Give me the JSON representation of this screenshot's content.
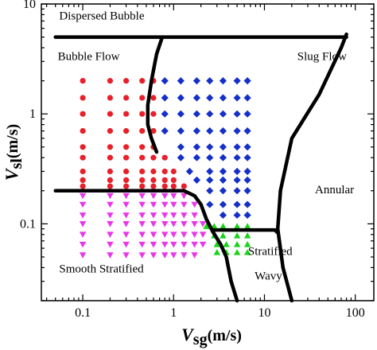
{
  "chart_data": {
    "type": "scatter",
    "title": "",
    "xlabel": {
      "symbol": "V",
      "subscript": "sg",
      "unit": "(m/s)"
    },
    "ylabel": {
      "symbol": "V",
      "subscript": "sl",
      "unit": "(m/s)"
    },
    "x_scale": "log",
    "y_scale": "log",
    "xlim": [
      0.035,
      160
    ],
    "ylim": [
      0.02,
      10
    ],
    "x_ticks": [
      {
        "value": 0.1,
        "label": "0.1"
      },
      {
        "value": 1,
        "label": "1"
      },
      {
        "value": 10,
        "label": "10"
      },
      {
        "value": 100,
        "label": "100"
      }
    ],
    "y_ticks": [
      {
        "value": 0.1,
        "label": "0.1"
      },
      {
        "value": 1,
        "label": "1"
      },
      {
        "value": 10,
        "label": "10"
      }
    ],
    "region_labels": [
      {
        "text": "Dispersed Bubble",
        "x": 0.055,
        "y": 7.2
      },
      {
        "text": "Bubble Flow",
        "x": 0.053,
        "y": 3.1
      },
      {
        "text": "Slug Flow",
        "x": 23,
        "y": 3.1
      },
      {
        "text": "Annular",
        "x": 36,
        "y": 0.19
      },
      {
        "text": "Stratified",
        "x": 6.6,
        "y": 0.052
      },
      {
        "text": "Wavy",
        "x": 7.8,
        "y": 0.031
      },
      {
        "text": "Smooth Stratified",
        "x": 0.055,
        "y": 0.036
      }
    ],
    "boundaries": [
      {
        "name": "dispersed-bubble-boundary",
        "points": [
          [
            0.05,
            5
          ],
          [
            80,
            5
          ]
        ]
      },
      {
        "name": "bubble-slug-boundary",
        "points": [
          [
            0.05,
            0.2
          ],
          [
            0.8,
            0.2
          ],
          [
            1.3,
            0.2
          ],
          [
            1.7,
            0.18
          ],
          [
            2.0,
            0.15
          ],
          [
            2.3,
            0.11
          ],
          [
            2.7,
            0.085
          ],
          [
            3.3,
            0.065
          ],
          [
            3.8,
            0.05
          ],
          [
            4.3,
            0.03
          ],
          [
            5.0,
            0.02
          ]
        ]
      },
      {
        "name": "slug-left-boundary",
        "points": [
          [
            0.65,
            0.45
          ],
          [
            0.57,
            0.6
          ],
          [
            0.52,
            0.8
          ],
          [
            0.52,
            1.2
          ],
          [
            0.57,
            2.0
          ],
          [
            0.65,
            3.5
          ],
          [
            0.75,
            5
          ]
        ]
      },
      {
        "name": "slug-annular-boundary",
        "points": [
          [
            80,
            5.3
          ],
          [
            70,
            4
          ],
          [
            40,
            1.5
          ],
          [
            20,
            0.6
          ],
          [
            15,
            0.2
          ],
          [
            14,
            0.09
          ],
          [
            16,
            0.04
          ],
          [
            20,
            0.02
          ]
        ]
      },
      {
        "name": "stratified-wavy-boundary",
        "points": [
          [
            2.8,
            0.088
          ],
          [
            13,
            0.088
          ],
          [
            14,
            0.083
          ]
        ]
      }
    ],
    "series": [
      {
        "marker": "circle",
        "color": "#e8202a",
        "points": [
          [
            0.1,
            2
          ],
          [
            0.2,
            2
          ],
          [
            0.3,
            2
          ],
          [
            0.45,
            2
          ],
          [
            0.6,
            2
          ],
          [
            0.1,
            1.4
          ],
          [
            0.2,
            1.4
          ],
          [
            0.3,
            1.4
          ],
          [
            0.45,
            1.4
          ],
          [
            0.6,
            1.4
          ],
          [
            0.1,
            1
          ],
          [
            0.2,
            1
          ],
          [
            0.3,
            1
          ],
          [
            0.45,
            1
          ],
          [
            0.6,
            1
          ],
          [
            0.1,
            0.7
          ],
          [
            0.2,
            0.7
          ],
          [
            0.3,
            0.7
          ],
          [
            0.45,
            0.7
          ],
          [
            0.6,
            0.7
          ],
          [
            0.1,
            0.5
          ],
          [
            0.2,
            0.5
          ],
          [
            0.3,
            0.5
          ],
          [
            0.45,
            0.5
          ],
          [
            0.6,
            0.5
          ],
          [
            0.1,
            0.4
          ],
          [
            0.2,
            0.4
          ],
          [
            0.3,
            0.4
          ],
          [
            0.45,
            0.4
          ],
          [
            0.6,
            0.4
          ],
          [
            0.8,
            0.4
          ],
          [
            0.1,
            0.3
          ],
          [
            0.2,
            0.3
          ],
          [
            0.3,
            0.3
          ],
          [
            0.45,
            0.3
          ],
          [
            0.6,
            0.3
          ],
          [
            0.8,
            0.3
          ],
          [
            1.0,
            0.3
          ],
          [
            0.1,
            0.25
          ],
          [
            0.2,
            0.25
          ],
          [
            0.3,
            0.25
          ],
          [
            0.45,
            0.25
          ],
          [
            0.6,
            0.25
          ],
          [
            0.8,
            0.25
          ],
          [
            1.0,
            0.25
          ],
          [
            0.1,
            0.22
          ],
          [
            0.2,
            0.22
          ],
          [
            0.3,
            0.22
          ],
          [
            0.45,
            0.22
          ],
          [
            0.6,
            0.22
          ],
          [
            0.8,
            0.22
          ],
          [
            1.0,
            0.22
          ],
          [
            1.3,
            0.22
          ]
        ]
      },
      {
        "marker": "diamond",
        "color": "#1530c8",
        "points": [
          [
            0.8,
            2
          ],
          [
            1.2,
            2
          ],
          [
            1.8,
            2
          ],
          [
            2.5,
            2
          ],
          [
            3.5,
            2
          ],
          [
            5,
            2
          ],
          [
            6.5,
            2
          ],
          [
            0.8,
            1.4
          ],
          [
            1.2,
            1.4
          ],
          [
            1.8,
            1.4
          ],
          [
            2.5,
            1.4
          ],
          [
            3.5,
            1.4
          ],
          [
            5,
            1.4
          ],
          [
            6.5,
            1.4
          ],
          [
            0.8,
            1
          ],
          [
            1.2,
            1
          ],
          [
            1.8,
            1
          ],
          [
            2.5,
            1
          ],
          [
            3.5,
            1
          ],
          [
            5,
            1
          ],
          [
            6.5,
            1
          ],
          [
            0.8,
            0.7
          ],
          [
            1.2,
            0.7
          ],
          [
            1.8,
            0.7
          ],
          [
            2.5,
            0.7
          ],
          [
            3.5,
            0.7
          ],
          [
            5,
            0.7
          ],
          [
            6.5,
            0.7
          ],
          [
            1.2,
            0.5
          ],
          [
            1.8,
            0.5
          ],
          [
            2.5,
            0.5
          ],
          [
            3.5,
            0.5
          ],
          [
            5,
            0.5
          ],
          [
            6.5,
            0.5
          ],
          [
            1.2,
            0.4
          ],
          [
            1.8,
            0.4
          ],
          [
            2.5,
            0.4
          ],
          [
            3.5,
            0.4
          ],
          [
            5,
            0.4
          ],
          [
            6.5,
            0.4
          ],
          [
            1.5,
            0.3
          ],
          [
            2.5,
            0.3
          ],
          [
            3.5,
            0.3
          ],
          [
            5,
            0.3
          ],
          [
            6.5,
            0.3
          ],
          [
            1.8,
            0.25
          ],
          [
            2.5,
            0.25
          ],
          [
            3.5,
            0.25
          ],
          [
            5,
            0.25
          ],
          [
            6.5,
            0.25
          ],
          [
            2.5,
            0.2
          ],
          [
            3.5,
            0.2
          ],
          [
            5,
            0.2
          ],
          [
            6.5,
            0.2
          ],
          [
            2.5,
            0.15
          ],
          [
            3.5,
            0.15
          ],
          [
            5,
            0.15
          ],
          [
            6.5,
            0.15
          ],
          [
            3.5,
            0.12
          ],
          [
            5,
            0.12
          ],
          [
            6.5,
            0.12
          ]
        ]
      },
      {
        "marker": "triangle-down",
        "color": "#e838e8",
        "points": [
          [
            0.1,
            0.18
          ],
          [
            0.2,
            0.18
          ],
          [
            0.3,
            0.18
          ],
          [
            0.45,
            0.18
          ],
          [
            0.6,
            0.18
          ],
          [
            0.8,
            0.18
          ],
          [
            1.0,
            0.18
          ],
          [
            1.3,
            0.18
          ],
          [
            0.1,
            0.15
          ],
          [
            0.2,
            0.15
          ],
          [
            0.3,
            0.15
          ],
          [
            0.45,
            0.15
          ],
          [
            0.6,
            0.15
          ],
          [
            0.8,
            0.15
          ],
          [
            1.0,
            0.15
          ],
          [
            1.3,
            0.15
          ],
          [
            1.7,
            0.15
          ],
          [
            0.1,
            0.12
          ],
          [
            0.2,
            0.12
          ],
          [
            0.3,
            0.12
          ],
          [
            0.45,
            0.12
          ],
          [
            0.6,
            0.12
          ],
          [
            0.8,
            0.12
          ],
          [
            1.0,
            0.12
          ],
          [
            1.3,
            0.12
          ],
          [
            1.7,
            0.12
          ],
          [
            0.1,
            0.1
          ],
          [
            0.2,
            0.1
          ],
          [
            0.3,
            0.1
          ],
          [
            0.45,
            0.1
          ],
          [
            0.6,
            0.1
          ],
          [
            0.8,
            0.1
          ],
          [
            1.0,
            0.1
          ],
          [
            1.3,
            0.1
          ],
          [
            1.7,
            0.1
          ],
          [
            2.1,
            0.1
          ],
          [
            0.1,
            0.08
          ],
          [
            0.2,
            0.08
          ],
          [
            0.3,
            0.08
          ],
          [
            0.45,
            0.08
          ],
          [
            0.6,
            0.08
          ],
          [
            0.8,
            0.08
          ],
          [
            1.0,
            0.08
          ],
          [
            1.3,
            0.08
          ],
          [
            1.7,
            0.08
          ],
          [
            2.1,
            0.08
          ],
          [
            0.1,
            0.065
          ],
          [
            0.2,
            0.065
          ],
          [
            0.3,
            0.065
          ],
          [
            0.45,
            0.065
          ],
          [
            0.6,
            0.065
          ],
          [
            0.8,
            0.065
          ],
          [
            1.0,
            0.065
          ],
          [
            1.3,
            0.065
          ],
          [
            1.7,
            0.065
          ],
          [
            2.1,
            0.065
          ],
          [
            0.1,
            0.052
          ],
          [
            0.2,
            0.052
          ],
          [
            0.3,
            0.052
          ],
          [
            0.45,
            0.052
          ],
          [
            0.6,
            0.052
          ],
          [
            0.8,
            0.052
          ],
          [
            1.0,
            0.052
          ],
          [
            1.3,
            0.052
          ],
          [
            1.7,
            0.052
          ]
        ]
      },
      {
        "marker": "triangle-up",
        "color": "#16d416",
        "points": [
          [
            2.3,
            0.095
          ],
          [
            2.8,
            0.095
          ],
          [
            3.5,
            0.095
          ],
          [
            5,
            0.095
          ],
          [
            6.5,
            0.095
          ],
          [
            2.8,
            0.078
          ],
          [
            3.5,
            0.078
          ],
          [
            5,
            0.078
          ],
          [
            6.5,
            0.078
          ],
          [
            3.0,
            0.065
          ],
          [
            3.8,
            0.065
          ],
          [
            5,
            0.065
          ],
          [
            6.5,
            0.065
          ],
          [
            3.0,
            0.055
          ],
          [
            3.8,
            0.055
          ],
          [
            5,
            0.055
          ],
          [
            6.5,
            0.055
          ]
        ]
      }
    ],
    "grid": false,
    "legend": "none"
  }
}
